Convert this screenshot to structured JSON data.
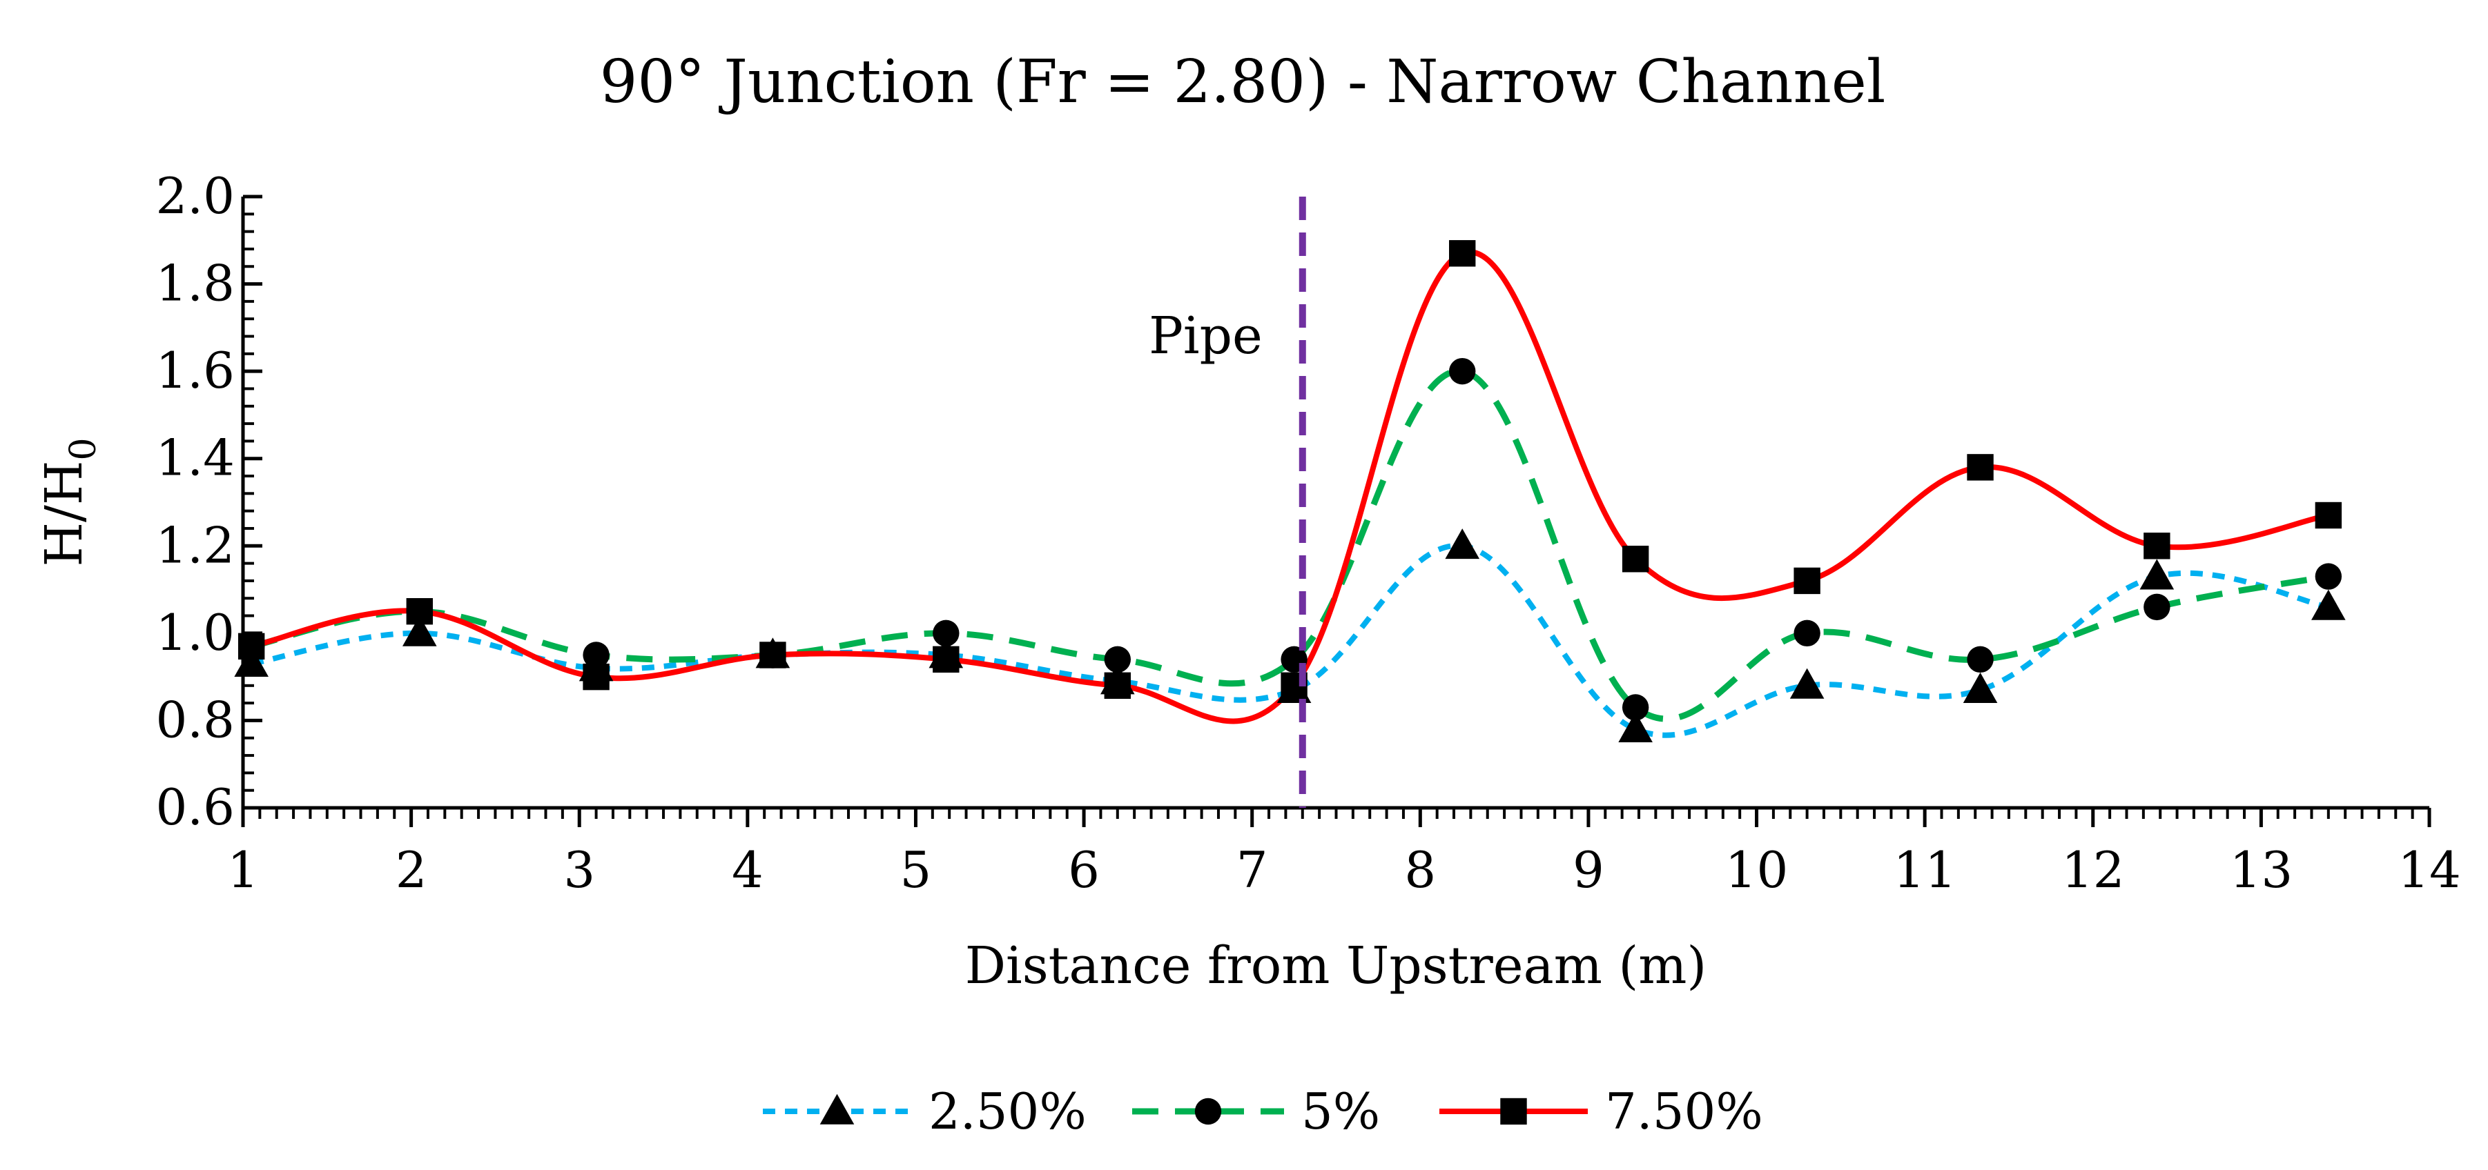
{
  "chart_data": {
    "type": "line",
    "title": "90° Junction (Fr = 2.80) - Narrow Channel",
    "xlabel": "Distance from Upstream (m)",
    "ylabel": {
      "main": "H/H",
      "sub": "0"
    },
    "xlim": [
      1,
      14
    ],
    "ylim": [
      0.6,
      2.0
    ],
    "x_ticks": [
      "1",
      "2",
      "3",
      "4",
      "5",
      "6",
      "7",
      "8",
      "9",
      "10",
      "11",
      "12",
      "13",
      "14"
    ],
    "y_ticks": [
      "0.6",
      "0.8",
      "1.0",
      "1.2",
      "1.4",
      "1.6",
      "1.8",
      "2.0"
    ],
    "grid": false,
    "legend_position": "bottom",
    "annotations": [
      {
        "type": "vertical-line",
        "x": 7.3,
        "label": "Pipe",
        "color": "#7030A0"
      }
    ],
    "series": [
      {
        "name": "2.50%",
        "color": "#00B0F0",
        "line_style": "dotted",
        "marker": "triangle",
        "x": [
          1.05,
          2.05,
          3.1,
          4.15,
          5.18,
          6.2,
          7.25,
          8.25,
          9.28,
          10.3,
          11.33,
          12.38,
          13.4
        ],
        "y": [
          0.93,
          1.0,
          0.92,
          0.95,
          0.95,
          0.89,
          0.87,
          1.2,
          0.78,
          0.88,
          0.87,
          1.13,
          1.06
        ]
      },
      {
        "name": "5%",
        "color": "#00B050",
        "line_style": "dashed",
        "marker": "circle",
        "x": [
          1.05,
          2.05,
          3.1,
          4.15,
          5.18,
          6.2,
          7.25,
          8.25,
          9.28,
          10.3,
          11.33,
          12.38,
          13.4
        ],
        "y": [
          0.97,
          1.05,
          0.95,
          0.95,
          1.0,
          0.94,
          0.94,
          1.6,
          0.83,
          1.0,
          0.94,
          1.06,
          1.13
        ]
      },
      {
        "name": "7.50%",
        "color": "#FF0000",
        "line_style": "solid",
        "marker": "square",
        "x": [
          1.05,
          2.05,
          3.1,
          4.15,
          5.18,
          6.2,
          7.25,
          8.25,
          9.28,
          10.3,
          11.33,
          12.38,
          13.4
        ],
        "y": [
          0.97,
          1.05,
          0.9,
          0.95,
          0.94,
          0.88,
          0.88,
          1.87,
          1.17,
          1.12,
          1.38,
          1.2,
          1.27
        ]
      }
    ]
  }
}
